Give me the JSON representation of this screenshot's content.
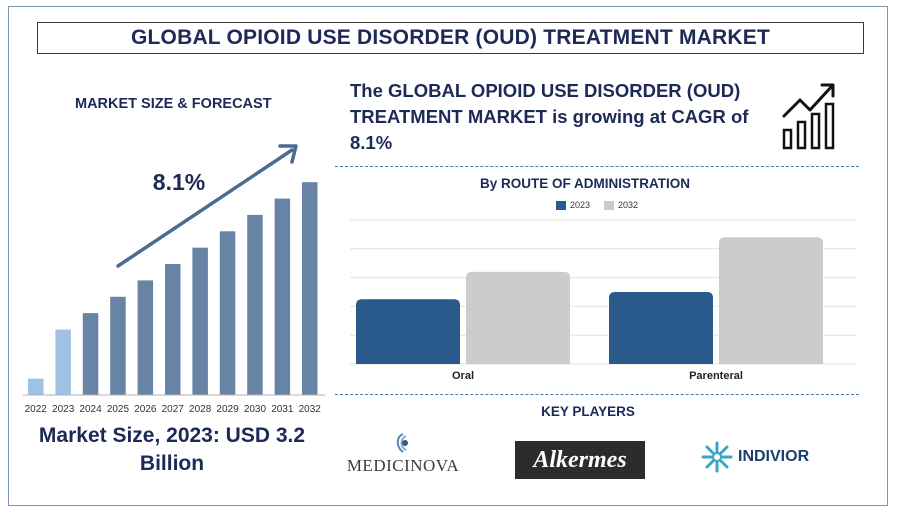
{
  "header": {
    "title": "GLOBAL OPIOID USE DISORDER (OUD) TREATMENT MARKET"
  },
  "left_panel": {
    "subtitle": "MARKET SIZE & FORECAST",
    "cagr_label": "8.1%",
    "market_size_text": "Market Size, 2023: USD 3.2 Billion"
  },
  "right_panel": {
    "headline": "The GLOBAL OPIOID USE DISORDER (OUD) TREATMENT MARKET is growing at CAGR of 8.1%",
    "key_players_title": "KEY PLAYERS",
    "key_players": [
      "MEDICINOVA",
      "Alkermes",
      "INDIVIOR"
    ]
  },
  "colors": {
    "navy": "#1d2a57",
    "hist_bar_light": "#9fc1e3",
    "hist_bar_main": "#6783a5",
    "arrow": "#4a6b94",
    "series_2023": "#2a5a8c",
    "series_2032": "#cccccc"
  },
  "chart_data": [
    {
      "type": "bar",
      "title": "MARKET SIZE & FORECAST",
      "categories": [
        "2022",
        "2023",
        "2024",
        "2025",
        "2026",
        "2027",
        "2028",
        "2029",
        "2030",
        "2031",
        "2032"
      ],
      "values": [
        1.0,
        4.0,
        5.0,
        6.0,
        7.0,
        8.0,
        9.0,
        10.0,
        11.0,
        12.0,
        13.0
      ],
      "value_unit": "relative (not labeled)",
      "highlighted_categories": [
        "2022",
        "2023"
      ],
      "annotation": "8.1%",
      "ylim": [
        0,
        13.5
      ]
    },
    {
      "type": "bar",
      "title": "By ROUTE OF ADMINISTRATION",
      "categories": [
        "Oral",
        "Parenteral"
      ],
      "series": [
        {
          "name": "2023",
          "values": [
            45,
            50
          ]
        },
        {
          "name": "2032",
          "values": [
            64,
            88
          ]
        }
      ],
      "ylim": [
        0,
        100
      ],
      "grid": true,
      "legend": "top-center"
    }
  ]
}
